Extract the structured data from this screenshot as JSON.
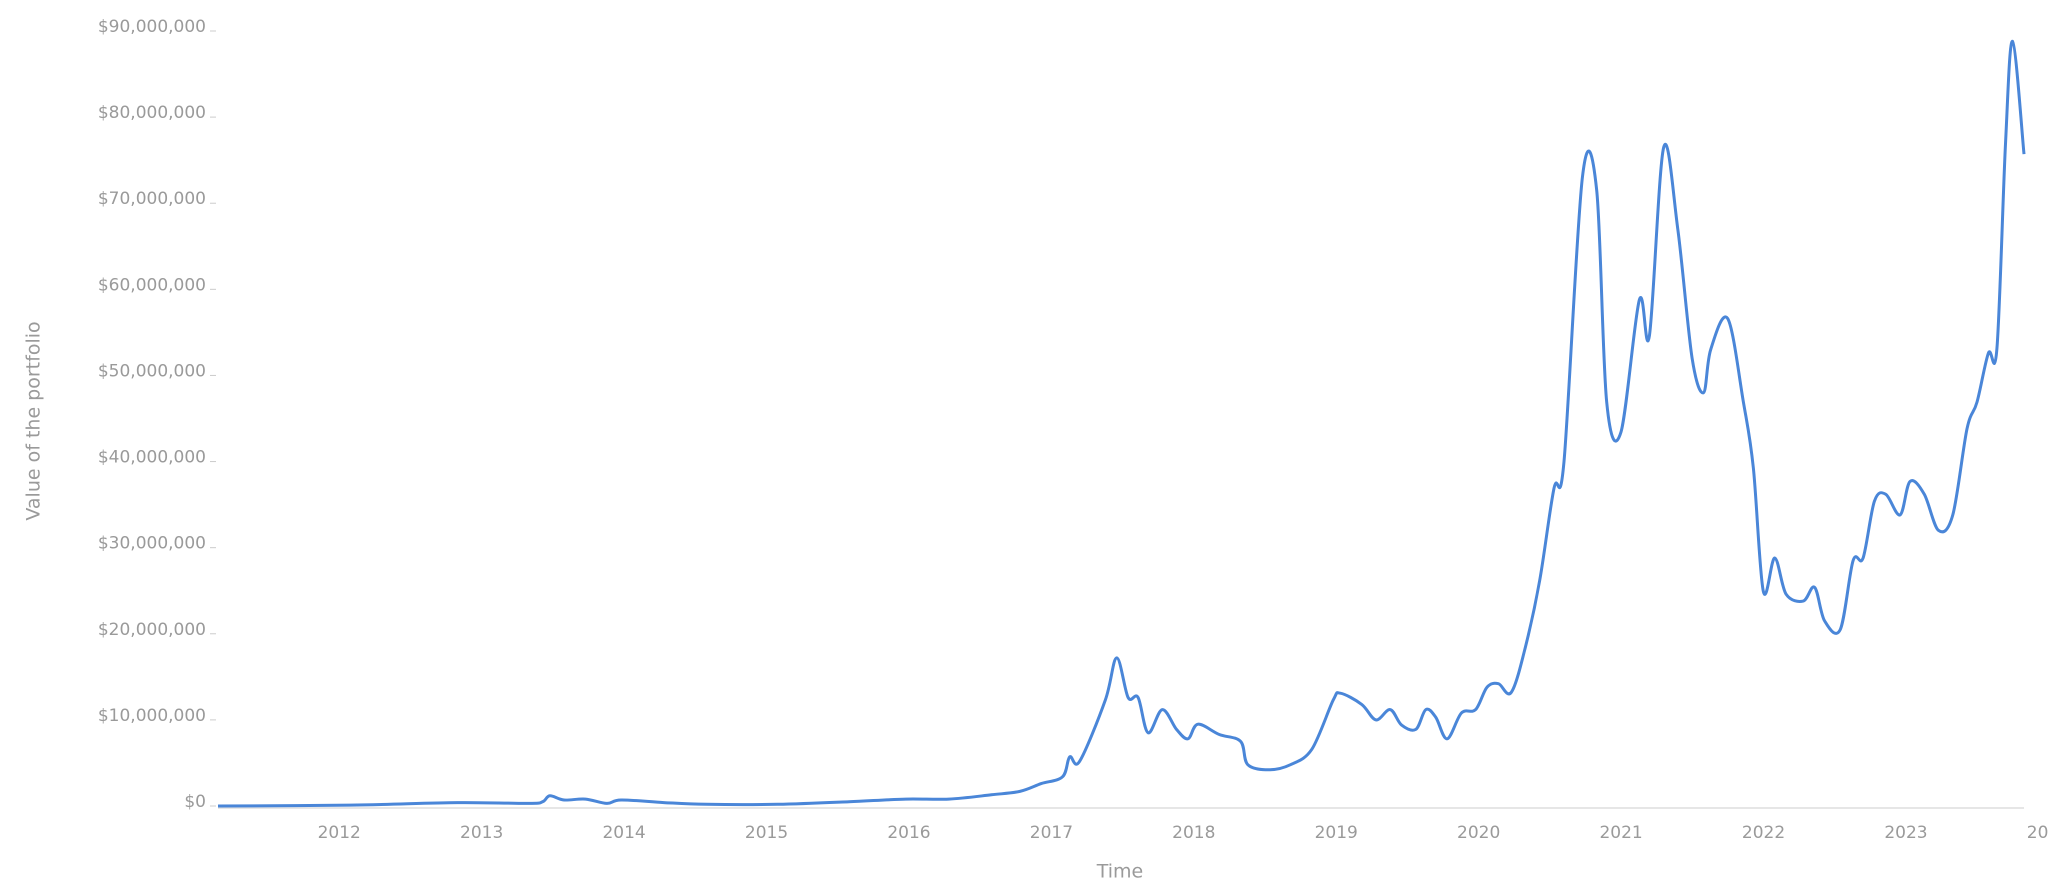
{
  "chart_data": {
    "type": "line",
    "x_label": "Time",
    "y_label": "Value of the portfolio",
    "xlim": [
      2011.57,
      2024.25
    ],
    "xticks": [
      2012,
      2013,
      2014,
      2015,
      2016,
      2017,
      2018,
      2019,
      2020,
      2021,
      2022,
      2023,
      2024
    ],
    "ylim": [
      0,
      90000000
    ],
    "yticks": [
      {
        "value": 0,
        "label": "$0"
      },
      {
        "value": 10000000,
        "label": "$10,000,000"
      },
      {
        "value": 20000000,
        "label": "$20,000,000"
      },
      {
        "value": 30000000,
        "label": "$30,000,000"
      },
      {
        "value": 40000000,
        "label": "$40,000,000"
      },
      {
        "value": 50000000,
        "label": "$50,000,000"
      },
      {
        "value": 60000000,
        "label": "$60,000,000"
      },
      {
        "value": 70000000,
        "label": "$70,000,000"
      },
      {
        "value": 80000000,
        "label": "$80,000,000"
      },
      {
        "value": 90000000,
        "label": "$90,000,000"
      }
    ],
    "grid": false,
    "series": [
      {
        "color": "#4a86d8",
        "x": [
          2011.57,
          2012.5,
          2013.25,
          2013.75,
          2013.85,
          2013.9,
          2014.0,
          2014.15,
          2014.3,
          2014.4,
          2014.7,
          2015.0,
          2015.5,
          2016.0,
          2016.4,
          2016.7,
          2017.0,
          2017.2,
          2017.35,
          2017.5,
          2017.55,
          2017.62,
          2017.8,
          2017.88,
          2017.96,
          2018.03,
          2018.1,
          2018.2,
          2018.3,
          2018.38,
          2018.45,
          2018.6,
          2018.75,
          2018.8,
          2018.95,
          2019.1,
          2019.25,
          2019.4,
          2019.45,
          2019.6,
          2019.7,
          2019.8,
          2019.88,
          2019.98,
          2020.05,
          2020.12,
          2020.2,
          2020.3,
          2020.4,
          2020.48,
          2020.56,
          2020.65,
          2020.75,
          2020.85,
          2020.95,
          2021.02,
          2021.15,
          2021.25,
          2021.32,
          2021.42,
          2021.55,
          2021.62,
          2021.72,
          2021.82,
          2021.92,
          2022.0,
          2022.05,
          2022.17,
          2022.28,
          2022.35,
          2022.42,
          2022.5,
          2022.58,
          2022.7,
          2022.78,
          2022.85,
          2022.96,
          2023.05,
          2023.12,
          2023.2,
          2023.28,
          2023.38,
          2023.45,
          2023.55,
          2023.65,
          2023.75,
          2023.85,
          2023.92,
          2024.0,
          2024.06,
          2024.12,
          2024.17,
          2024.25
        ],
        "values": [
          0,
          100000,
          400000,
          300000,
          500000,
          1200000,
          700000,
          800000,
          300000,
          700000,
          400000,
          200000,
          200000,
          500000,
          800000,
          800000,
          1300000,
          1700000,
          2600000,
          3400000,
          5700000,
          5200000,
          12300000,
          17200000,
          12600000,
          12600000,
          8500000,
          11200000,
          8900000,
          7800000,
          9500000,
          8300000,
          7500000,
          4800000,
          4200000,
          4800000,
          6600000,
          12300000,
          13100000,
          11800000,
          10000000,
          11200000,
          9400000,
          8900000,
          11200000,
          10300000,
          7800000,
          10800000,
          11200000,
          13800000,
          14200000,
          13200000,
          18500000,
          26200000,
          36900000,
          40000000,
          73100000,
          71500000,
          46900000,
          43400000,
          58800000,
          54600000,
          76500000,
          66900000,
          52000000,
          48000000,
          53000000,
          56600000,
          46900000,
          39200000,
          24900000,
          28800000,
          24600000,
          23800000,
          25400000,
          21500000,
          20500000,
          28500000,
          28800000,
          35400000,
          36200000,
          33800000,
          37700000,
          36200000,
          32000000,
          33800000,
          43800000,
          46900000,
          52600000,
          53100000,
          76900000,
          88800000,
          75700000
        ]
      }
    ]
  }
}
